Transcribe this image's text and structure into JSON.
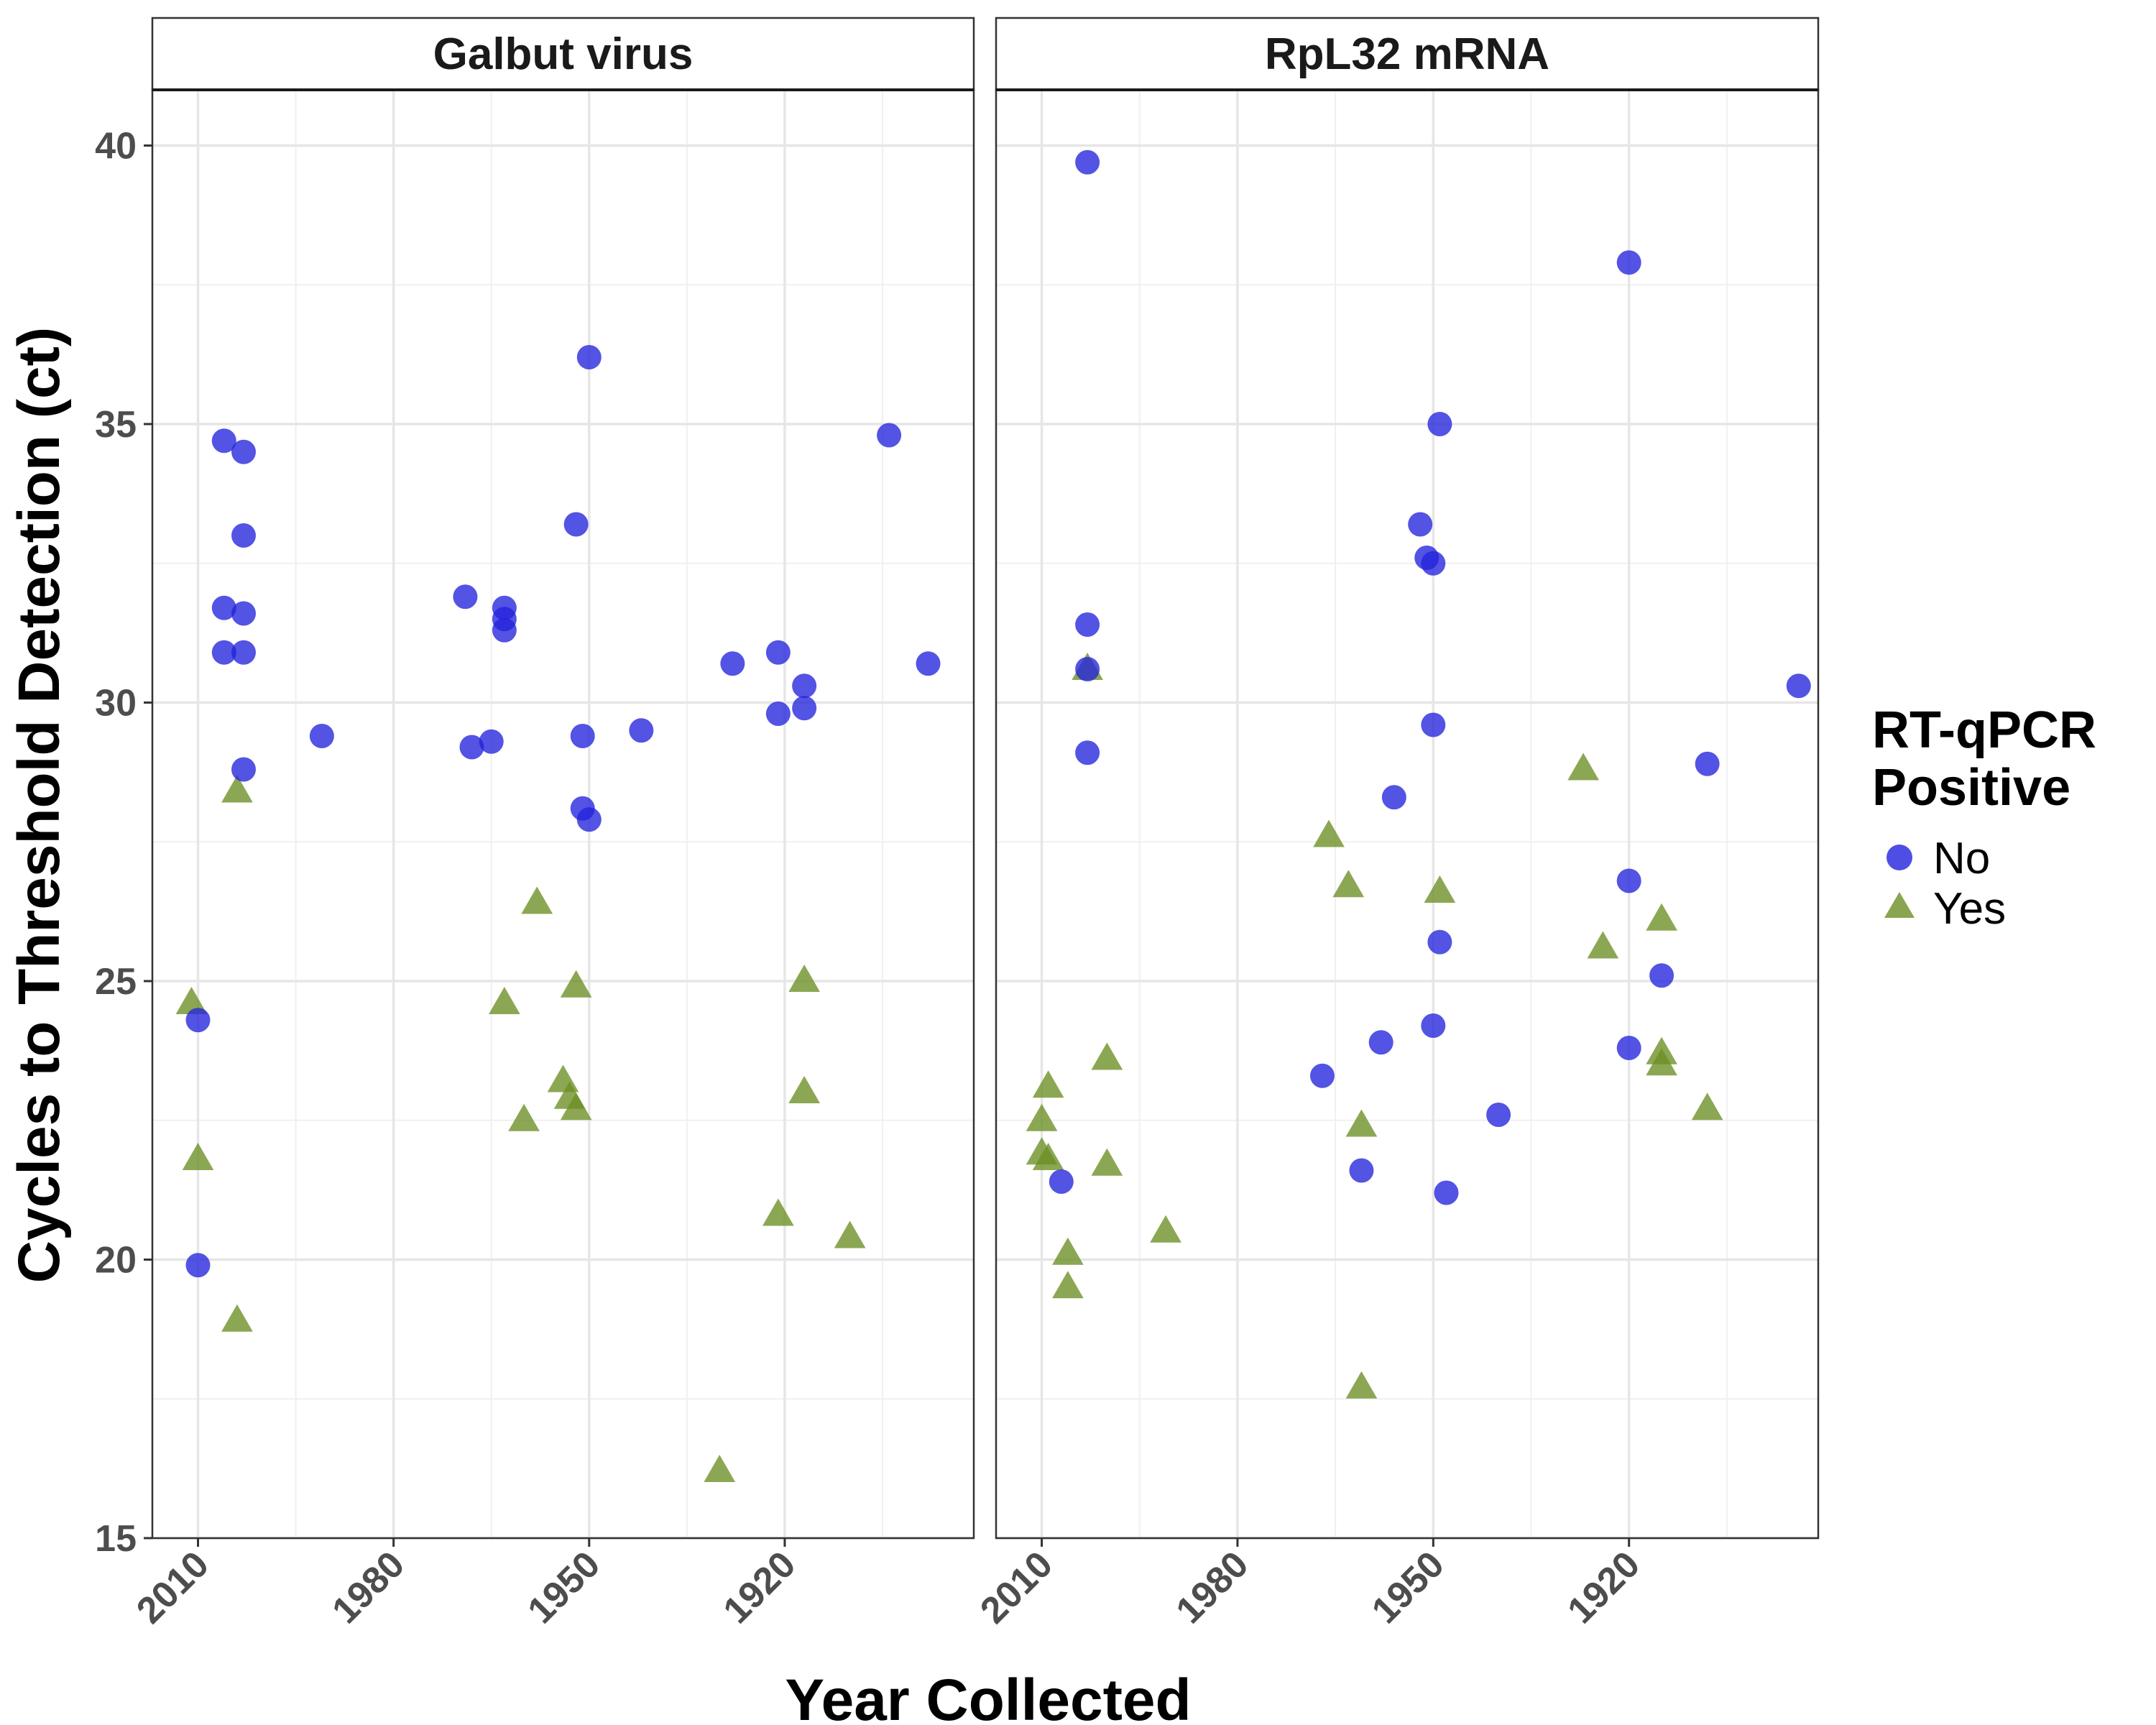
{
  "chart_data": {
    "type": "scatter",
    "xlabel": "Year Collected",
    "ylabel": "Cycles to Threshold Detection (ct)",
    "x_reversed": true,
    "xlim": [
      2017,
      1891
    ],
    "ylim": [
      15,
      41
    ],
    "x_ticks": [
      2010,
      1980,
      1950,
      1920
    ],
    "x_tick_labels": [
      "2010",
      "1980",
      "1950",
      "1920"
    ],
    "y_ticks": [
      15,
      20,
      25,
      30,
      35,
      40
    ],
    "y_tick_labels": [
      "15",
      "20",
      "25",
      "30",
      "35",
      "40"
    ],
    "grid": true,
    "legend": {
      "title_line1": "RT-qPCR",
      "title_line2": "Positive",
      "placement": "right",
      "entries": [
        {
          "label": "No",
          "shape": "circle",
          "color": "#2222dd"
        },
        {
          "label": "Yes",
          "shape": "triangle",
          "color": "#6b8e23"
        }
      ]
    },
    "panels": [
      {
        "title": "Galbut virus",
        "points": [
          {
            "x": 2011,
            "y": 24.6,
            "pos": "Yes"
          },
          {
            "x": 2010,
            "y": 21.8,
            "pos": "Yes"
          },
          {
            "x": 2004,
            "y": 28.4,
            "pos": "Yes"
          },
          {
            "x": 2004,
            "y": 18.9,
            "pos": "Yes"
          },
          {
            "x": 1963,
            "y": 24.6,
            "pos": "Yes"
          },
          {
            "x": 1960,
            "y": 22.5,
            "pos": "Yes"
          },
          {
            "x": 1958,
            "y": 26.4,
            "pos": "Yes"
          },
          {
            "x": 1954,
            "y": 23.2,
            "pos": "Yes"
          },
          {
            "x": 1953,
            "y": 22.9,
            "pos": "Yes"
          },
          {
            "x": 1952,
            "y": 24.9,
            "pos": "Yes"
          },
          {
            "x": 1952,
            "y": 22.7,
            "pos": "Yes"
          },
          {
            "x": 1930,
            "y": 16.2,
            "pos": "Yes"
          },
          {
            "x": 1921,
            "y": 20.8,
            "pos": "Yes"
          },
          {
            "x": 1917,
            "y": 25.0,
            "pos": "Yes"
          },
          {
            "x": 1917,
            "y": 23.0,
            "pos": "Yes"
          },
          {
            "x": 1910,
            "y": 20.4,
            "pos": "Yes"
          },
          {
            "x": 2010,
            "y": 24.3,
            "pos": "No"
          },
          {
            "x": 2010,
            "y": 19.9,
            "pos": "No"
          },
          {
            "x": 2006,
            "y": 34.7,
            "pos": "No"
          },
          {
            "x": 2006,
            "y": 31.7,
            "pos": "No"
          },
          {
            "x": 2006,
            "y": 30.9,
            "pos": "No"
          },
          {
            "x": 2003,
            "y": 34.5,
            "pos": "No"
          },
          {
            "x": 2003,
            "y": 33.0,
            "pos": "No"
          },
          {
            "x": 2003,
            "y": 31.6,
            "pos": "No"
          },
          {
            "x": 2003,
            "y": 30.9,
            "pos": "No"
          },
          {
            "x": 2003,
            "y": 28.8,
            "pos": "No"
          },
          {
            "x": 1991,
            "y": 29.4,
            "pos": "No"
          },
          {
            "x": 1969,
            "y": 31.9,
            "pos": "No"
          },
          {
            "x": 1968,
            "y": 29.2,
            "pos": "No"
          },
          {
            "x": 1965,
            "y": 29.3,
            "pos": "No"
          },
          {
            "x": 1963,
            "y": 31.7,
            "pos": "No"
          },
          {
            "x": 1963,
            "y": 31.5,
            "pos": "No"
          },
          {
            "x": 1963,
            "y": 31.3,
            "pos": "No"
          },
          {
            "x": 1952,
            "y": 33.2,
            "pos": "No"
          },
          {
            "x": 1951,
            "y": 29.4,
            "pos": "No"
          },
          {
            "x": 1951,
            "y": 28.1,
            "pos": "No"
          },
          {
            "x": 1950,
            "y": 36.2,
            "pos": "No"
          },
          {
            "x": 1950,
            "y": 27.9,
            "pos": "No"
          },
          {
            "x": 1942,
            "y": 29.5,
            "pos": "No"
          },
          {
            "x": 1928,
            "y": 30.7,
            "pos": "No"
          },
          {
            "x": 1921,
            "y": 30.9,
            "pos": "No"
          },
          {
            "x": 1921,
            "y": 29.8,
            "pos": "No"
          },
          {
            "x": 1917,
            "y": 30.3,
            "pos": "No"
          },
          {
            "x": 1917,
            "y": 29.9,
            "pos": "No"
          },
          {
            "x": 1904,
            "y": 34.8,
            "pos": "No"
          },
          {
            "x": 1898,
            "y": 30.7,
            "pos": "No"
          }
        ]
      },
      {
        "title": "RpL32 mRNA",
        "points": [
          {
            "x": 2010,
            "y": 22.5,
            "pos": "Yes"
          },
          {
            "x": 2010,
            "y": 21.9,
            "pos": "Yes"
          },
          {
            "x": 2009,
            "y": 23.1,
            "pos": "Yes"
          },
          {
            "x": 2009,
            "y": 21.8,
            "pos": "Yes"
          },
          {
            "x": 2006,
            "y": 20.1,
            "pos": "Yes"
          },
          {
            "x": 2006,
            "y": 19.5,
            "pos": "Yes"
          },
          {
            "x": 2003,
            "y": 30.6,
            "pos": "Yes"
          },
          {
            "x": 2000,
            "y": 23.6,
            "pos": "Yes"
          },
          {
            "x": 2000,
            "y": 21.7,
            "pos": "Yes"
          },
          {
            "x": 1991,
            "y": 20.5,
            "pos": "Yes"
          },
          {
            "x": 1966,
            "y": 27.6,
            "pos": "Yes"
          },
          {
            "x": 1963,
            "y": 26.7,
            "pos": "Yes"
          },
          {
            "x": 1961,
            "y": 22.4,
            "pos": "Yes"
          },
          {
            "x": 1961,
            "y": 17.7,
            "pos": "Yes"
          },
          {
            "x": 1949,
            "y": 26.6,
            "pos": "Yes"
          },
          {
            "x": 1927,
            "y": 28.8,
            "pos": "Yes"
          },
          {
            "x": 1924,
            "y": 25.6,
            "pos": "Yes"
          },
          {
            "x": 1915,
            "y": 26.1,
            "pos": "Yes"
          },
          {
            "x": 1915,
            "y": 23.7,
            "pos": "Yes"
          },
          {
            "x": 1915,
            "y": 23.5,
            "pos": "Yes"
          },
          {
            "x": 1908,
            "y": 22.7,
            "pos": "Yes"
          },
          {
            "x": 2007,
            "y": 21.4,
            "pos": "No"
          },
          {
            "x": 2003,
            "y": 39.7,
            "pos": "No"
          },
          {
            "x": 2003,
            "y": 31.4,
            "pos": "No"
          },
          {
            "x": 2003,
            "y": 30.6,
            "pos": "No"
          },
          {
            "x": 2003,
            "y": 29.1,
            "pos": "No"
          },
          {
            "x": 1967,
            "y": 23.3,
            "pos": "No"
          },
          {
            "x": 1961,
            "y": 21.6,
            "pos": "No"
          },
          {
            "x": 1958,
            "y": 23.9,
            "pos": "No"
          },
          {
            "x": 1956,
            "y": 28.3,
            "pos": "No"
          },
          {
            "x": 1952,
            "y": 33.2,
            "pos": "No"
          },
          {
            "x": 1951,
            "y": 32.6,
            "pos": "No"
          },
          {
            "x": 1950,
            "y": 32.5,
            "pos": "No"
          },
          {
            "x": 1950,
            "y": 29.6,
            "pos": "No"
          },
          {
            "x": 1950,
            "y": 24.2,
            "pos": "No"
          },
          {
            "x": 1949,
            "y": 35.0,
            "pos": "No"
          },
          {
            "x": 1949,
            "y": 25.7,
            "pos": "No"
          },
          {
            "x": 1948,
            "y": 21.2,
            "pos": "No"
          },
          {
            "x": 1940,
            "y": 22.6,
            "pos": "No"
          },
          {
            "x": 1920,
            "y": 37.9,
            "pos": "No"
          },
          {
            "x": 1920,
            "y": 26.8,
            "pos": "No"
          },
          {
            "x": 1920,
            "y": 23.8,
            "pos": "No"
          },
          {
            "x": 1915,
            "y": 25.1,
            "pos": "No"
          },
          {
            "x": 1908,
            "y": 28.9,
            "pos": "No"
          },
          {
            "x": 1894,
            "y": 30.3,
            "pos": "No"
          }
        ]
      }
    ]
  }
}
